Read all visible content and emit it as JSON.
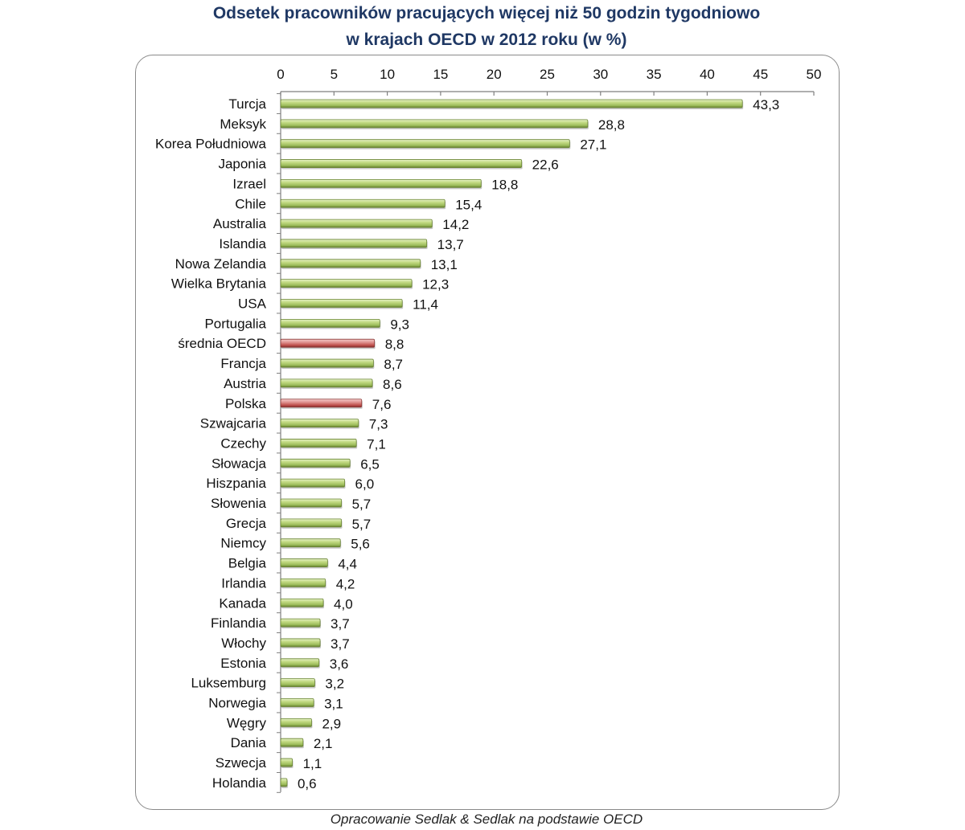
{
  "chart_data": {
    "type": "bar",
    "orientation": "horizontal",
    "title_line1": "Odsetek pracowników pracujących więcej niż 50 godzin tygodniowo",
    "title_line2": "w krajach OECD w 2012 roku (w %)",
    "xlim": [
      0,
      50
    ],
    "ticks": [
      0,
      5,
      10,
      15,
      20,
      25,
      30,
      35,
      40,
      45,
      50
    ],
    "tick_labels": [
      "0",
      "5",
      "10",
      "15",
      "20",
      "25",
      "30",
      "35",
      "40",
      "45",
      "50"
    ],
    "axis_position": "top",
    "grid": false,
    "colors": {
      "default": "#9bbb59",
      "highlight": "#c0504d"
    },
    "categories": [
      "Turcja",
      "Meksyk",
      "Korea Południowa",
      "Japonia",
      "Izrael",
      "Chile",
      "Australia",
      "Islandia",
      "Nowa Zelandia",
      "Wielka Brytania",
      "USA",
      "Portugalia",
      "średnia OECD",
      "Francja",
      "Austria",
      "Polska",
      "Szwajcaria",
      "Czechy",
      "Słowacja",
      "Hiszpania",
      "Słowenia",
      "Grecja",
      "Niemcy",
      "Belgia",
      "Irlandia",
      "Kanada",
      "Finlandia",
      "Włochy",
      "Estonia",
      "Luksemburg",
      "Norwegia",
      "Węgry",
      "Dania",
      "Szwecja",
      "Holandia"
    ],
    "values": [
      43.3,
      28.8,
      27.1,
      22.6,
      18.8,
      15.4,
      14.2,
      13.7,
      13.1,
      12.3,
      11.4,
      9.3,
      8.8,
      8.7,
      8.6,
      7.6,
      7.3,
      7.1,
      6.5,
      6.0,
      5.7,
      5.7,
      5.6,
      4.4,
      4.2,
      4.0,
      3.7,
      3.7,
      3.6,
      3.2,
      3.1,
      2.9,
      2.1,
      1.1,
      0.6
    ],
    "value_labels": [
      "43,3",
      "28,8",
      "27,1",
      "22,6",
      "18,8",
      "15,4",
      "14,2",
      "13,7",
      "13,1",
      "12,3",
      "11,4",
      "9,3",
      "8,8",
      "8,7",
      "8,6",
      "7,6",
      "7,3",
      "7,1",
      "6,5",
      "6,0",
      "5,7",
      "5,7",
      "5,6",
      "4,4",
      "4,2",
      "4,0",
      "3,7",
      "3,7",
      "3,6",
      "3,2",
      "3,1",
      "2,9",
      "2,1",
      "1,1",
      "0,6"
    ],
    "highlighted": [
      "średnia OECD",
      "Polska"
    ]
  },
  "source_note": "Opracowanie Sedlak & Sedlak na podstawie OECD"
}
